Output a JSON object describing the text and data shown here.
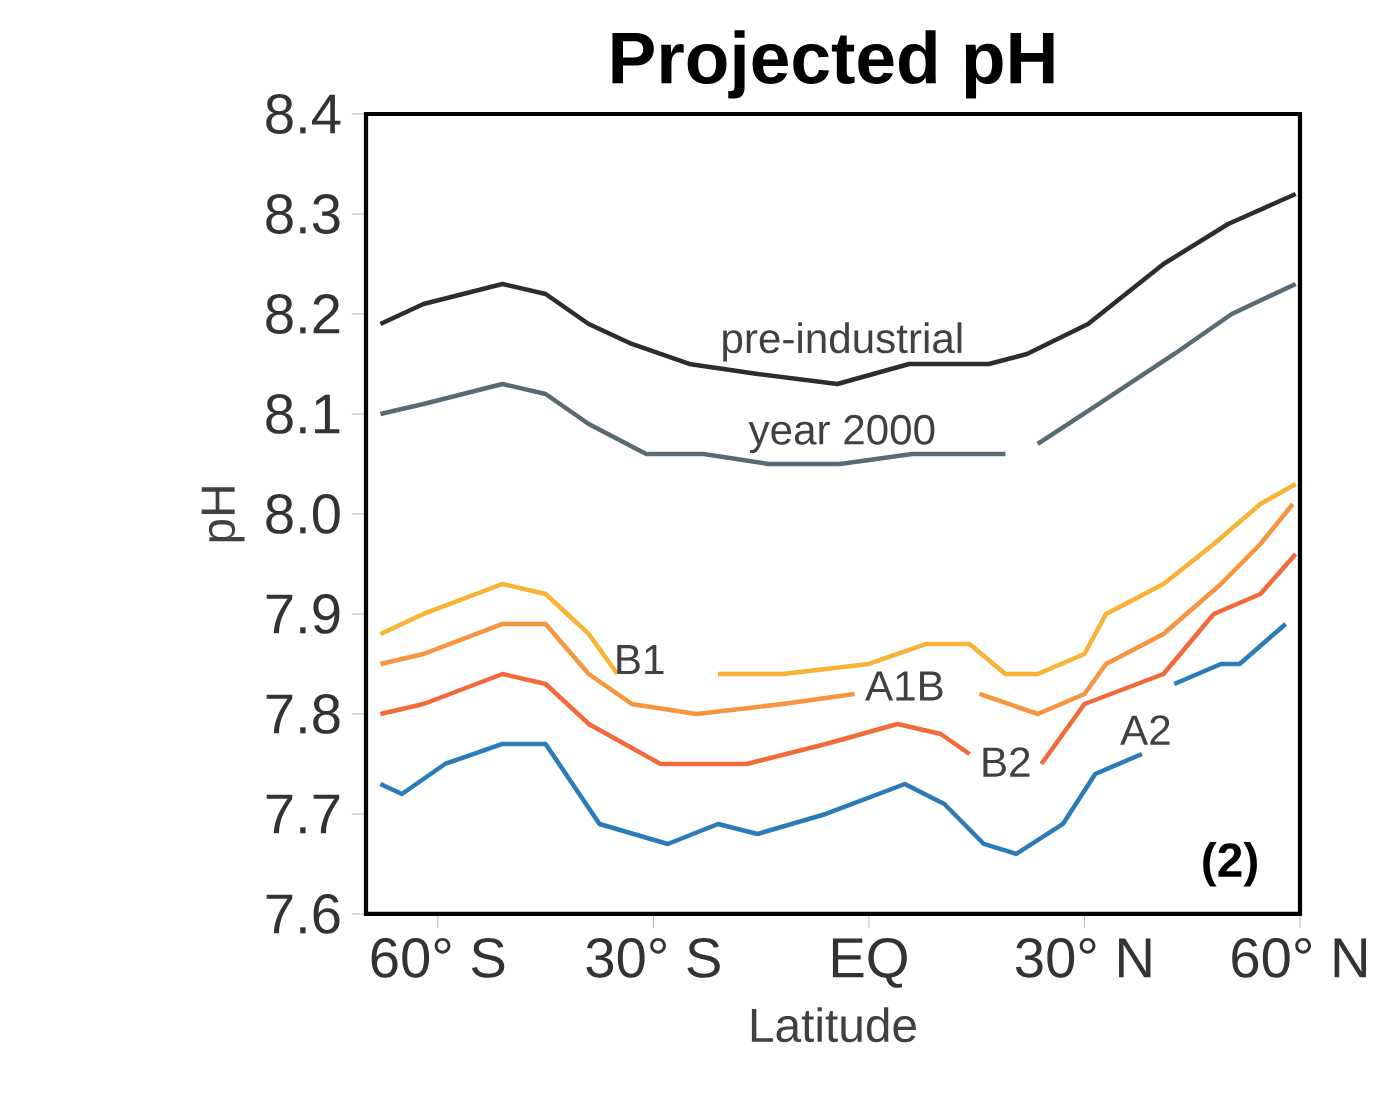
{
  "chart_data": {
    "type": "line",
    "title": "Projected pH",
    "xlabel": "Latitude",
    "ylabel": "pH",
    "xlim": [
      -70,
      60
    ],
    "ylim": [
      7.6,
      8.4
    ],
    "xticks": [
      {
        "value": -60,
        "label": "60° S"
      },
      {
        "value": -30,
        "label": "30° S"
      },
      {
        "value": 0,
        "label": "EQ"
      },
      {
        "value": 30,
        "label": "30° N"
      },
      {
        "value": 60,
        "label": "60° N"
      }
    ],
    "yticks": [
      {
        "value": 7.6,
        "label": "7.6"
      },
      {
        "value": 7.7,
        "label": "7.7"
      },
      {
        "value": 7.8,
        "label": "7.8"
      },
      {
        "value": 7.9,
        "label": "7.9"
      },
      {
        "value": 8.0,
        "label": "8.0"
      },
      {
        "value": 8.1,
        "label": "8.1"
      },
      {
        "value": 8.2,
        "label": "8.2"
      },
      {
        "value": 8.3,
        "label": "8.3"
      },
      {
        "value": 8.4,
        "label": "8.4"
      }
    ],
    "grid": false,
    "legend": false,
    "marker": "none",
    "line_style": "solid",
    "series": [
      {
        "color": "#2a2e33",
        "x": [
          -68,
          -62,
          -51,
          -45,
          -39,
          -33,
          -25,
          -15.5,
          -4.4,
          5.6,
          16.7,
          22,
          30.5,
          41,
          50,
          59.4
        ],
        "values": [
          8.19,
          8.21,
          8.23,
          8.22,
          8.19,
          8.17,
          8.15,
          8.14,
          8.13,
          8.15,
          8.15,
          8.16,
          8.19,
          8.25,
          8.29,
          8.32
        ]
      },
      {
        "color": "#5a6a72",
        "x": [
          -68,
          -62,
          -51,
          -45,
          -39,
          -31,
          -23,
          -14,
          -4,
          6,
          19,
          21,
          23.5,
          32,
          42.5,
          50.5,
          59.4
        ],
        "values": [
          8.1,
          8.11,
          8.13,
          8.12,
          8.09,
          8.06,
          8.06,
          8.05,
          8.05,
          8.06,
          8.06,
          null,
          8.07,
          8.11,
          8.16,
          8.2,
          8.23
        ]
      },
      {
        "color": "#f9b233",
        "x": [
          -68,
          -62,
          -51,
          -45,
          -39,
          -35,
          -28,
          -21,
          -12,
          0,
          8,
          14,
          19,
          23.5,
          30,
          33,
          41,
          48,
          54.5,
          59.4
        ],
        "values": [
          7.88,
          7.9,
          7.93,
          7.92,
          7.88,
          7.84,
          null,
          7.84,
          7.84,
          7.85,
          7.87,
          7.87,
          7.84,
          7.84,
          7.86,
          7.9,
          7.93,
          7.97,
          8.01,
          8.03
        ]
      },
      {
        "color": "#f7943e",
        "x": [
          -68,
          -62,
          -51,
          -45,
          -39,
          -33,
          -24,
          -12,
          -2,
          6,
          15.4,
          23.5,
          30,
          33,
          41,
          49,
          54.5,
          59
        ],
        "values": [
          7.85,
          7.86,
          7.89,
          7.89,
          7.84,
          7.81,
          7.8,
          7.81,
          7.82,
          null,
          7.82,
          7.8,
          7.82,
          7.85,
          7.88,
          7.93,
          7.97,
          8.01
        ]
      },
      {
        "color": "#f26a3a",
        "x": [
          -68,
          -62,
          -51,
          -45,
          -39,
          -29,
          -17,
          -6,
          4,
          10,
          14,
          19,
          24,
          30,
          41,
          48,
          54.5,
          59.4
        ],
        "values": [
          7.8,
          7.81,
          7.84,
          7.83,
          7.79,
          7.75,
          7.75,
          7.77,
          7.79,
          7.78,
          7.76,
          null,
          7.75,
          7.81,
          7.84,
          7.9,
          7.92,
          7.96
        ]
      },
      {
        "color": "#2b7bb9",
        "x": [
          -68,
          -65,
          -59,
          -51,
          -45,
          -37.5,
          -28,
          -21,
          -15.5,
          -6,
          5,
          10.5,
          16,
          20.5,
          27,
          31.5,
          38,
          40,
          42.5,
          49,
          51.6,
          58
        ],
        "values": [
          7.73,
          7.72,
          7.75,
          7.77,
          7.77,
          7.69,
          7.67,
          7.69,
          7.68,
          7.7,
          7.73,
          7.71,
          7.67,
          7.66,
          7.69,
          7.74,
          7.76,
          null,
          7.83,
          7.85,
          7.85,
          7.89
        ]
      }
    ],
    "annotations": [
      "pre-industrial",
      "year 2000",
      "B1",
      "A1B",
      "B2",
      "A2",
      "(2)"
    ]
  }
}
